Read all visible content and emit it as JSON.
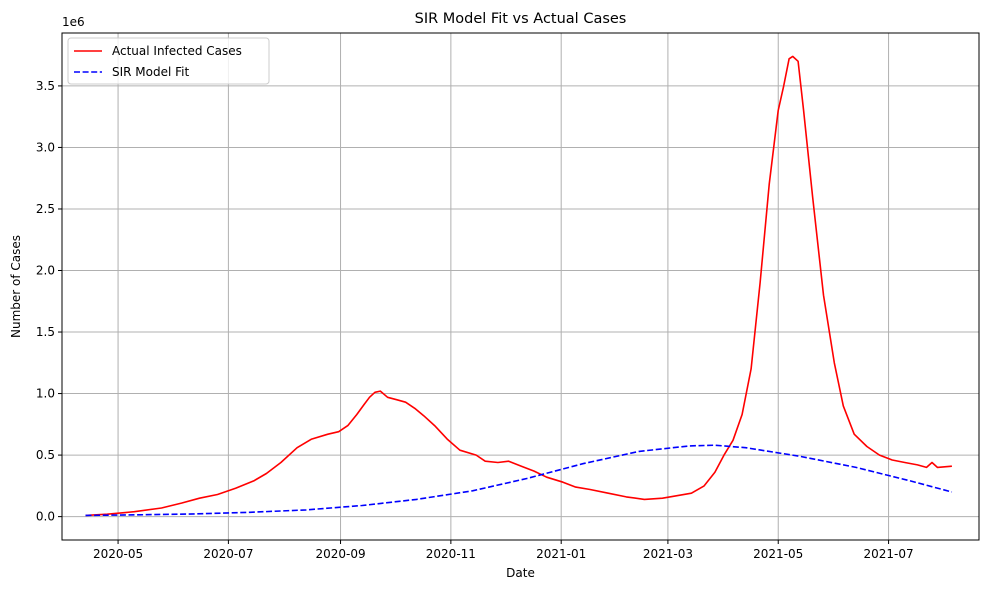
{
  "chart_data": {
    "type": "line",
    "title": "SIR Model Fit vs Actual Cases",
    "xlabel": "Date",
    "ylabel": "Number of Cases",
    "y_offset_label": "1e6",
    "xlim": [
      "2020-03-31",
      "2021-08-20"
    ],
    "ylim": [
      -0.19,
      3.93
    ],
    "x_ticks": [
      "2020-05",
      "2020-07",
      "2020-09",
      "2020-11",
      "2021-01",
      "2021-03",
      "2021-05",
      "2021-07"
    ],
    "y_ticks": [
      "0.0",
      "0.5",
      "1.0",
      "1.5",
      "2.0",
      "2.5",
      "3.0",
      "3.5"
    ],
    "grid": true,
    "legend_position": "top-left",
    "series": [
      {
        "name": "Actual Infected Cases",
        "color": "#ff0000",
        "style": "solid",
        "points": [
          [
            "2020-04-13",
            0.01
          ],
          [
            "2020-04-25",
            0.02
          ],
          [
            "2020-05-10",
            0.04
          ],
          [
            "2020-05-25",
            0.07
          ],
          [
            "2020-06-05",
            0.11
          ],
          [
            "2020-06-15",
            0.15
          ],
          [
            "2020-06-25",
            0.18
          ],
          [
            "2020-07-05",
            0.23
          ],
          [
            "2020-07-15",
            0.29
          ],
          [
            "2020-07-22",
            0.35
          ],
          [
            "2020-07-30",
            0.44
          ],
          [
            "2020-08-08",
            0.56
          ],
          [
            "2020-08-16",
            0.63
          ],
          [
            "2020-08-25",
            0.67
          ],
          [
            "2020-08-31",
            0.69
          ],
          [
            "2020-09-05",
            0.74
          ],
          [
            "2020-09-10",
            0.83
          ],
          [
            "2020-09-14",
            0.91
          ],
          [
            "2020-09-17",
            0.97
          ],
          [
            "2020-09-20",
            1.01
          ],
          [
            "2020-09-23",
            1.02
          ],
          [
            "2020-09-27",
            0.97
          ],
          [
            "2020-10-02",
            0.95
          ],
          [
            "2020-10-07",
            0.93
          ],
          [
            "2020-10-12",
            0.88
          ],
          [
            "2020-10-17",
            0.82
          ],
          [
            "2020-10-23",
            0.74
          ],
          [
            "2020-10-30",
            0.63
          ],
          [
            "2020-11-06",
            0.54
          ],
          [
            "2020-11-15",
            0.5
          ],
          [
            "2020-11-20",
            0.45
          ],
          [
            "2020-11-27",
            0.44
          ],
          [
            "2020-12-03",
            0.45
          ],
          [
            "2020-12-10",
            0.41
          ],
          [
            "2020-12-17",
            0.37
          ],
          [
            "2020-12-24",
            0.32
          ],
          [
            "2021-01-02",
            0.28
          ],
          [
            "2021-01-09",
            0.24
          ],
          [
            "2021-01-17",
            0.22
          ],
          [
            "2021-01-27",
            0.19
          ],
          [
            "2021-02-06",
            0.16
          ],
          [
            "2021-02-16",
            0.14
          ],
          [
            "2021-02-26",
            0.15
          ],
          [
            "2021-03-06",
            0.17
          ],
          [
            "2021-03-14",
            0.19
          ],
          [
            "2021-03-21",
            0.25
          ],
          [
            "2021-03-27",
            0.36
          ],
          [
            "2021-04-01",
            0.5
          ],
          [
            "2021-04-06",
            0.62
          ],
          [
            "2021-04-11",
            0.83
          ],
          [
            "2021-04-16",
            1.2
          ],
          [
            "2021-04-21",
            1.9
          ],
          [
            "2021-04-26",
            2.7
          ],
          [
            "2021-05-01",
            3.3
          ],
          [
            "2021-05-04",
            3.5
          ],
          [
            "2021-05-07",
            3.72
          ],
          [
            "2021-05-09",
            3.74
          ],
          [
            "2021-05-12",
            3.7
          ],
          [
            "2021-05-15",
            3.3
          ],
          [
            "2021-05-20",
            2.6
          ],
          [
            "2021-05-26",
            1.8
          ],
          [
            "2021-06-01",
            1.25
          ],
          [
            "2021-06-06",
            0.9
          ],
          [
            "2021-06-12",
            0.67
          ],
          [
            "2021-06-19",
            0.57
          ],
          [
            "2021-06-26",
            0.5
          ],
          [
            "2021-07-03",
            0.46
          ],
          [
            "2021-07-10",
            0.44
          ],
          [
            "2021-07-17",
            0.42
          ],
          [
            "2021-07-22",
            0.4
          ],
          [
            "2021-07-25",
            0.44
          ],
          [
            "2021-07-28",
            0.4
          ],
          [
            "2021-08-05",
            0.41
          ]
        ]
      },
      {
        "name": "SIR Model Fit",
        "color": "#0000ff",
        "style": "dashed",
        "points": [
          [
            "2020-04-13",
            0.01
          ],
          [
            "2020-05-13",
            0.015
          ],
          [
            "2020-06-13",
            0.022
          ],
          [
            "2020-07-13",
            0.035
          ],
          [
            "2020-08-13",
            0.055
          ],
          [
            "2020-09-13",
            0.09
          ],
          [
            "2020-10-13",
            0.14
          ],
          [
            "2020-11-13",
            0.21
          ],
          [
            "2020-12-13",
            0.31
          ],
          [
            "2021-01-13",
            0.43
          ],
          [
            "2021-02-13",
            0.53
          ],
          [
            "2021-03-13",
            0.575
          ],
          [
            "2021-03-27",
            0.58
          ],
          [
            "2021-04-13",
            0.56
          ],
          [
            "2021-05-13",
            0.49
          ],
          [
            "2021-06-13",
            0.4
          ],
          [
            "2021-07-13",
            0.29
          ],
          [
            "2021-08-05",
            0.2
          ]
        ]
      }
    ]
  }
}
